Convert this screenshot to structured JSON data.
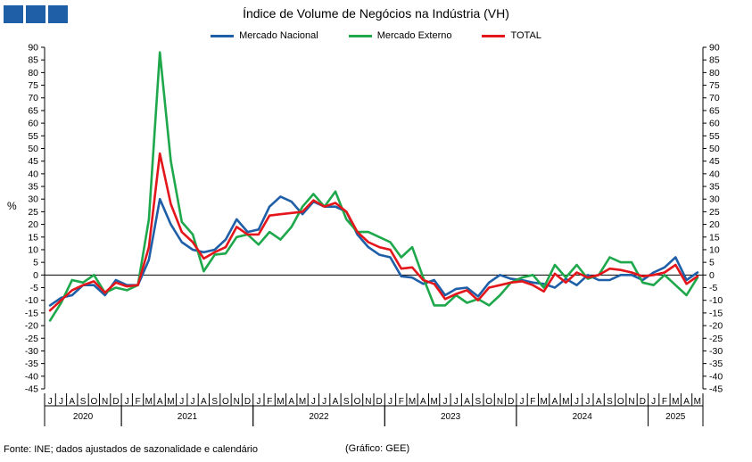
{
  "header": {
    "title": "Índice de Volume de Negócios na Indústria (VH)"
  },
  "footer": {
    "source": "Fonte: INE; dados ajustados de sazonalidade e calendário",
    "credit": "(Gráfico: GEE)"
  },
  "chart_data": {
    "type": "line",
    "title": "Índice de Volume de Negócios na Indústria (VH)",
    "ylabel": "%",
    "ylim": [
      -45,
      90
    ],
    "ytick_step": 5,
    "secondary_y_axis": true,
    "grid": false,
    "legend_position": "top-center",
    "x": [
      "2020-06",
      "2020-07",
      "2020-08",
      "2020-09",
      "2020-10",
      "2020-11",
      "2020-12",
      "2021-01",
      "2021-02",
      "2021-03",
      "2021-04",
      "2021-05",
      "2021-06",
      "2021-07",
      "2021-08",
      "2021-09",
      "2021-10",
      "2021-11",
      "2021-12",
      "2022-01",
      "2022-02",
      "2022-03",
      "2022-04",
      "2022-05",
      "2022-06",
      "2022-07",
      "2022-08",
      "2022-09",
      "2022-10",
      "2022-11",
      "2022-12",
      "2023-01",
      "2023-02",
      "2023-03",
      "2023-04",
      "2023-05",
      "2023-06",
      "2023-07",
      "2023-08",
      "2023-09",
      "2023-10",
      "2023-11",
      "2023-12",
      "2024-01",
      "2024-02",
      "2024-03",
      "2024-04",
      "2024-05",
      "2024-06",
      "2024-07",
      "2024-08",
      "2024-09",
      "2024-10",
      "2024-11",
      "2024-12",
      "2025-01",
      "2025-02",
      "2025-03",
      "2025-04",
      "2025-05"
    ],
    "month_labels": [
      "J",
      "J",
      "A",
      "S",
      "O",
      "N",
      "D",
      "J",
      "F",
      "M",
      "A",
      "M",
      "J",
      "J",
      "A",
      "S",
      "O",
      "N",
      "D",
      "J",
      "F",
      "M",
      "A",
      "M",
      "J",
      "J",
      "A",
      "S",
      "O",
      "N",
      "D",
      "J",
      "F",
      "M",
      "A",
      "M",
      "J",
      "J",
      "A",
      "S",
      "O",
      "N",
      "D",
      "J",
      "F",
      "M",
      "A",
      "M",
      "J",
      "J",
      "A",
      "S",
      "O",
      "N",
      "D",
      "J",
      "F",
      "M",
      "A",
      "M"
    ],
    "year_groups": [
      {
        "label": "2020",
        "start": 0,
        "count": 7
      },
      {
        "label": "2021",
        "start": 7,
        "count": 12
      },
      {
        "label": "2022",
        "start": 19,
        "count": 12
      },
      {
        "label": "2023",
        "start": 31,
        "count": 12
      },
      {
        "label": "2024",
        "start": 43,
        "count": 12
      },
      {
        "label": "2025",
        "start": 55,
        "count": 5
      }
    ],
    "series": [
      {
        "name": "Mercado Nacional",
        "color": "#1f5fa8",
        "values": [
          -12,
          -9,
          -8,
          -4,
          -4,
          -8,
          -2,
          -4,
          -4,
          6,
          30,
          20,
          13,
          10,
          9,
          10,
          14,
          22,
          17,
          18,
          27,
          31,
          29,
          24,
          29,
          27,
          27,
          25,
          16,
          11,
          8,
          7,
          -0.5,
          -1,
          -3.5,
          -2,
          -8,
          -5.5,
          -5,
          -8.5,
          -3,
          0,
          -1.5,
          -2,
          -3,
          -3.5,
          -5,
          -1.5,
          -4,
          0,
          -2,
          -2,
          0,
          0,
          -2,
          1,
          3,
          7,
          -2,
          1
        ]
      },
      {
        "name": "Mercado Externo",
        "color": "#1ea84b",
        "values": [
          -18,
          -11,
          -2,
          -3,
          0,
          -7,
          -5,
          -6,
          -4,
          22,
          88,
          45,
          21,
          16,
          1.5,
          8,
          8.5,
          15,
          16,
          12,
          17,
          14,
          19,
          27,
          32,
          27,
          33,
          22,
          17,
          17,
          15,
          13,
          7,
          11,
          -1,
          -12,
          -12,
          -8,
          -11,
          -9.5,
          -12,
          -8,
          -3,
          -1,
          0,
          -5,
          4,
          -1,
          4,
          -1.5,
          0,
          7,
          5,
          5,
          -3,
          -4,
          0,
          -4,
          -8,
          -1
        ]
      },
      {
        "name": "TOTAL",
        "color": "#e3161b",
        "values": [
          -14,
          -10,
          -6,
          -4,
          -2.5,
          -7,
          -3,
          -4.5,
          -4,
          11,
          48,
          28,
          17,
          13,
          6.5,
          9,
          11,
          19,
          16,
          16,
          23.5,
          24,
          24.5,
          25,
          29.5,
          27,
          28.5,
          25,
          17,
          13,
          11,
          10,
          2.5,
          3,
          -2,
          -3.5,
          -9.5,
          -7.5,
          -6,
          -10,
          -5,
          -4,
          -3,
          -2.5,
          -4,
          -6.5,
          0.5,
          -3,
          1,
          -1,
          0,
          2.5,
          2,
          1,
          -0.5,
          0,
          1,
          4,
          -3.5,
          -0.5
        ]
      }
    ]
  }
}
